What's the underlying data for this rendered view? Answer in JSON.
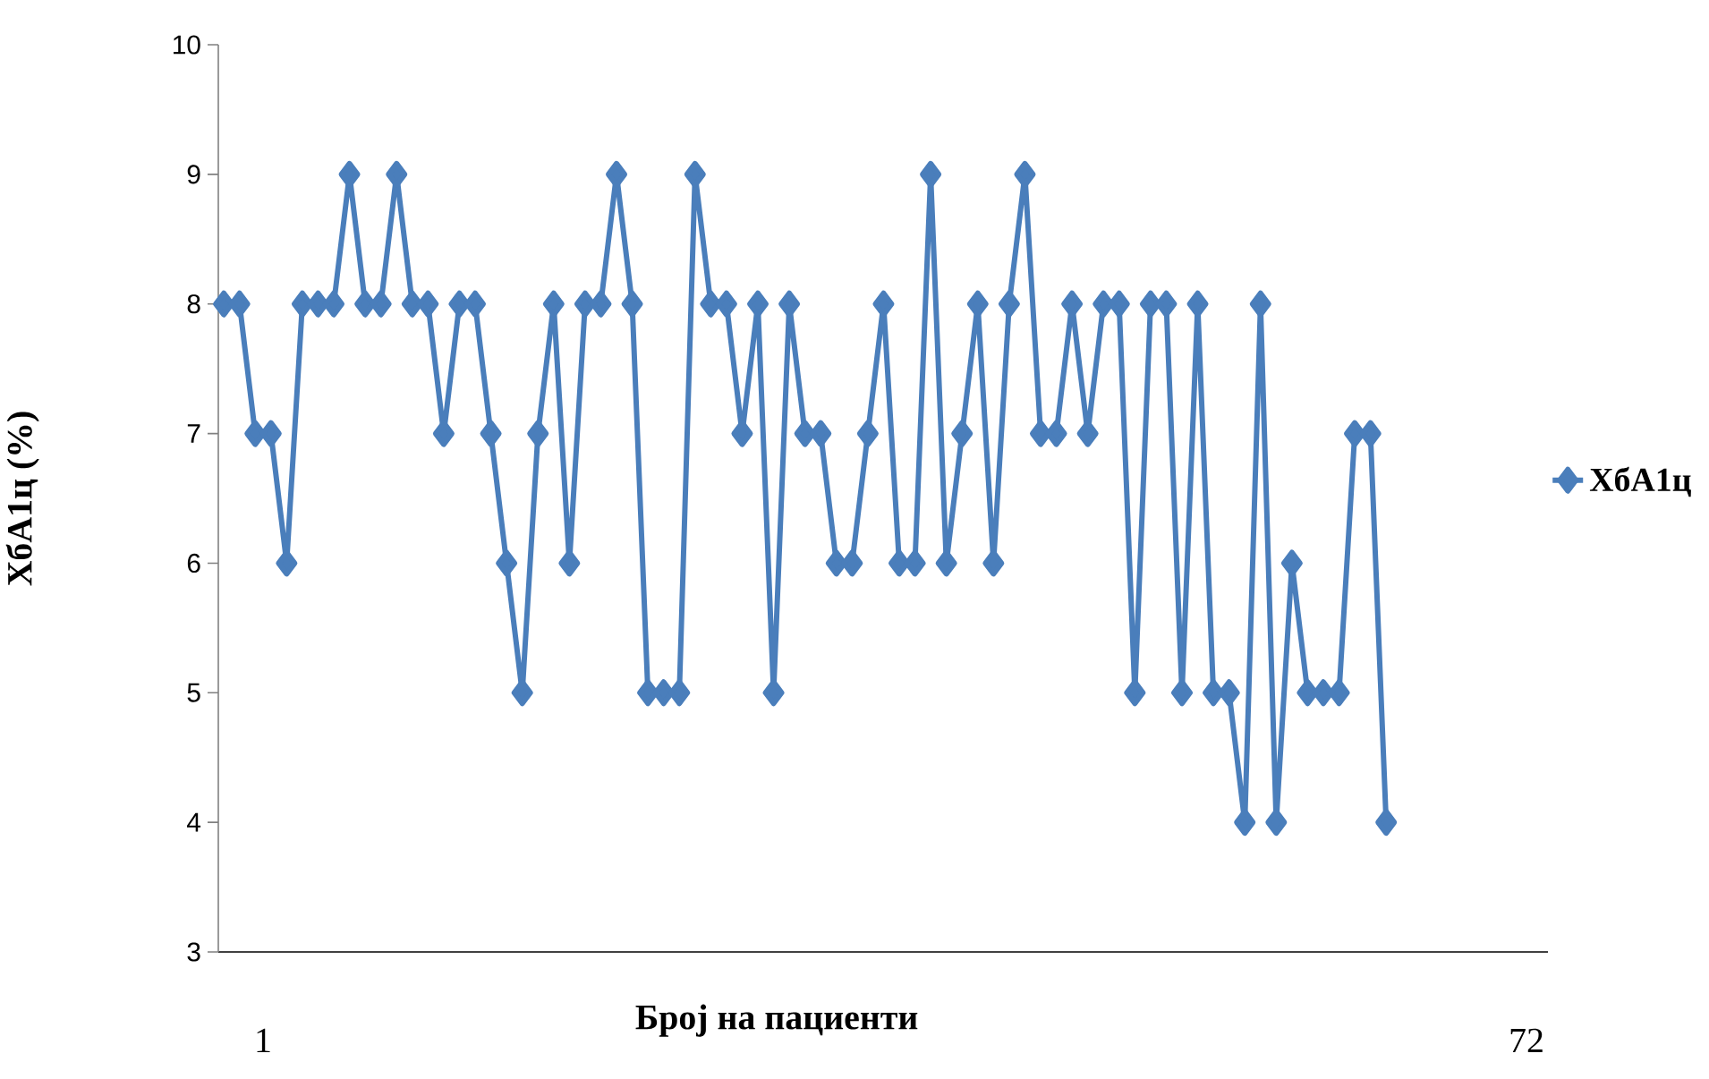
{
  "chart_data": {
    "type": "line",
    "xlabel": "Број на пациенти",
    "ylabel": "ХбА1ц (%)",
    "categories": [
      null,
      null,
      null,
      null,
      null,
      null,
      null,
      null,
      null,
      null,
      null,
      null,
      null,
      null,
      null,
      null,
      null,
      null,
      null,
      null,
      null,
      null,
      null,
      null,
      null,
      null,
      null,
      null,
      null,
      null,
      null,
      null,
      null,
      null,
      null,
      null,
      null,
      null,
      null,
      null,
      null,
      null,
      null,
      null,
      null,
      null,
      null,
      null,
      null,
      null,
      null,
      null,
      null,
      null,
      null,
      null,
      null,
      null,
      null,
      null,
      null,
      null,
      null,
      null,
      null,
      null,
      null,
      null,
      null,
      null,
      null,
      null,
      null,
      null,
      null,
      null,
      null,
      null,
      null,
      null,
      null,
      null,
      null,
      null,
      null
    ],
    "series": [
      {
        "name": "ХбА1ц",
        "color": "#4a7ebb",
        "values": [
          8,
          8,
          7,
          7,
          6,
          8,
          8,
          8,
          9,
          8,
          8,
          9,
          8,
          8,
          7,
          8,
          8,
          7,
          6,
          5,
          7,
          8,
          6,
          8,
          8,
          9,
          8,
          5,
          5,
          5,
          9,
          8,
          8,
          7,
          8,
          5,
          8,
          7,
          7,
          6,
          6,
          7,
          8,
          6,
          6,
          9,
          6,
          7,
          8,
          6,
          8,
          9,
          7,
          7,
          8,
          7,
          8,
          8,
          5,
          8,
          8,
          5,
          8,
          5,
          5,
          4,
          8,
          4,
          6,
          5,
          5,
          5,
          7,
          7,
          4,
          null,
          null,
          null,
          null,
          null,
          null,
          null,
          null,
          null,
          null
        ]
      }
    ],
    "ylim": [
      3,
      10
    ],
    "yticks": [
      3,
      4,
      5,
      6,
      7,
      8,
      9,
      10
    ],
    "tick_labels": "y",
    "grid": false,
    "legend": "right",
    "marker": "diamond",
    "line_style": "solid",
    "annotations": [
      "1",
      "72"
    ]
  }
}
